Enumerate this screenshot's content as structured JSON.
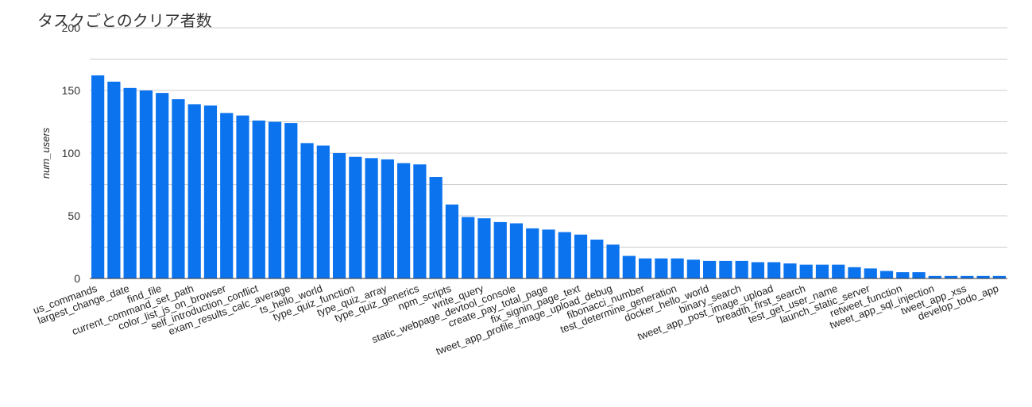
{
  "chart_data": {
    "type": "bar",
    "title": "タスクごとのクリア者数",
    "xlabel": "",
    "ylabel": "num_users",
    "ylim": [
      0,
      200
    ],
    "yticks": [
      0,
      50,
      100,
      150,
      200
    ],
    "grid": true,
    "legend": "none",
    "bar_color": "#0b73ee",
    "grid_color": "#cccccc",
    "categories": [
      "us_commands",
      "",
      "largest_change_date",
      "",
      "find_file",
      "",
      "current_command_set_path",
      "",
      "color_list_js_on_browser",
      "",
      "self_introduction_conflict",
      "",
      "exam_results_calc_average",
      "",
      "ts_hello_world",
      "",
      "type_quiz_function",
      "",
      "type_quiz_array",
      "",
      "type_quiz_generics",
      "",
      "npm_scripts",
      "",
      "write_query",
      "",
      "static_webpage_devtool_console",
      "",
      "create_pay_total_page",
      "",
      "fix_signin_page_text",
      "",
      "tweet_app_profile_image_upload_debug",
      "",
      "fibonacci_number",
      "",
      "test_determine_generation",
      "",
      "docker_hello_world",
      "",
      "binary_search",
      "",
      "tweet_app_post_image_upload",
      "",
      "breadth_first_search",
      "",
      "test_get_user_name",
      "",
      "launch_static_server",
      "",
      "retweet_function",
      "",
      "tweet_app_sql_injection",
      "",
      "tweet_app_xss",
      "",
      "develop_todo_app"
    ],
    "values": [
      162,
      157,
      152,
      150,
      148,
      143,
      139,
      138,
      132,
      130,
      126,
      125,
      124,
      108,
      106,
      100,
      97,
      96,
      95,
      92,
      91,
      81,
      59,
      49,
      48,
      45,
      44,
      40,
      39,
      37,
      35,
      31,
      27,
      18,
      16,
      16,
      16,
      15,
      14,
      14,
      14,
      13,
      13,
      12,
      11,
      11,
      11,
      9,
      8,
      6,
      5,
      5,
      2,
      2,
      2,
      2,
      2
    ]
  }
}
